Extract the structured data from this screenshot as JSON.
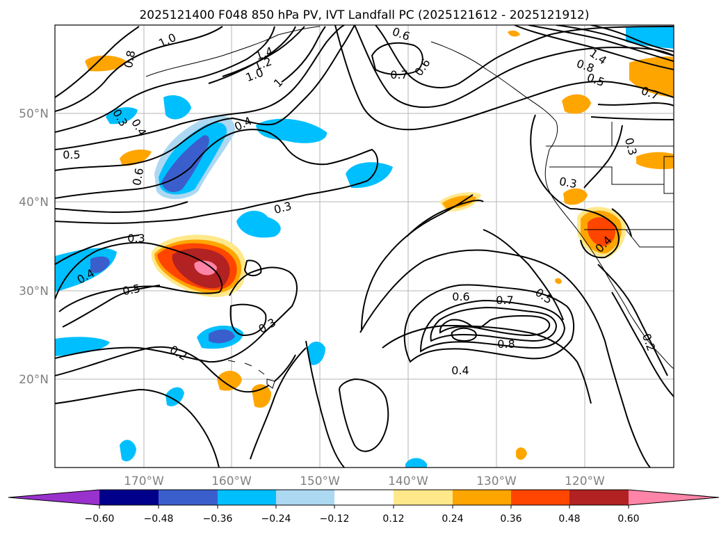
{
  "title": "2025121400 F048 850 hPa PV, IVT Landfall PC (2025121612 - 2025121912)",
  "axes": {
    "lon_ticks": [
      "170°W",
      "160°W",
      "150°W",
      "140°W",
      "130°W",
      "120°W"
    ],
    "lat_ticks": [
      "50°N",
      "40°N",
      "30°N",
      "20°N"
    ],
    "tick_color": "#808080"
  },
  "colorbar": {
    "tick_labels": [
      "−0.60",
      "−0.48",
      "−0.36",
      "−0.24",
      "−0.12",
      "0.12",
      "0.24",
      "0.36",
      "0.48",
      "0.60"
    ],
    "colors": [
      "#9932cc",
      "#00008b",
      "#3a5fcd",
      "#00bfff",
      "#add8f2",
      "#ffffff",
      "#ffe88a",
      "#ffa500",
      "#ff4500",
      "#b22222",
      "#ff85a8"
    ]
  },
  "contour_labels": [
    "1.0",
    "0.8",
    "1.4",
    "1.2",
    "1.0",
    "1",
    "0.6",
    "0.7",
    "0.6",
    "1.4",
    "0.8",
    "0.5",
    "0.7",
    "0.3",
    "0.4",
    "0.4",
    "0.5",
    "0.6",
    "0.3",
    "0.3",
    "0.3",
    "0.3",
    "0.4",
    "0.5",
    "0.4",
    "0.3",
    "0.2",
    "0.6",
    "0.7",
    "0.5",
    "0.8",
    "0.4",
    "0.2"
  ]
}
